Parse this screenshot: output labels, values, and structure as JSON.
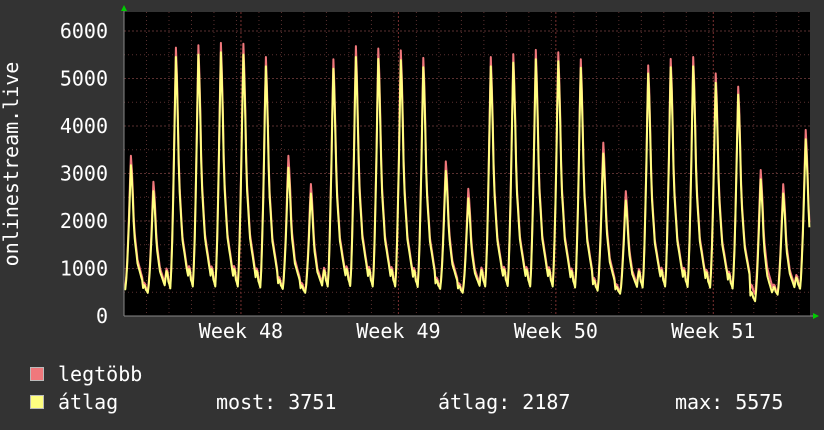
{
  "colors": {
    "background": "#333333",
    "plot_background": "#000000",
    "grid": "#5a3030",
    "axis": "#888888",
    "max_series": "#f0787c",
    "avg_series": "#ffff80",
    "arrow": "#00cc00"
  },
  "legend": {
    "max_label": "legtöbb",
    "avg_label": "átlag"
  },
  "stats": {
    "now": "most: 3751",
    "avg": "átlag: 2187",
    "max": "max: 5575"
  },
  "chart_data": {
    "type": "area",
    "ylabel": "onlinestream.live",
    "xlabel": "",
    "title": "",
    "ylim": [
      0,
      6400
    ],
    "yticks": [
      0,
      1000,
      2000,
      3000,
      4000,
      5000,
      6000
    ],
    "xticks": [
      {
        "label": "Week 48",
        "day": 5.2
      },
      {
        "label": "Week 49",
        "day": 12.2
      },
      {
        "label": "Week 50",
        "day": 19.2
      },
      {
        "label": "Week 51",
        "day": 26.2
      }
    ],
    "x_days_total": 30.5,
    "grid": true,
    "series": [
      {
        "name": "legtöbb",
        "color": "#f0787c",
        "daily_peaks": [
          3400,
          2850,
          5700,
          5750,
          5800,
          5780,
          5500,
          3400,
          2800,
          5450,
          5730,
          5680,
          5640,
          5480,
          3280,
          2700,
          5500,
          5560,
          5650,
          5600,
          5450,
          3680,
          2650,
          5320,
          5460,
          5500,
          5150,
          4870,
          3100,
          2800,
          3950
        ],
        "daily_mins": [
          600,
          520,
          600,
          650,
          640,
          650,
          620,
          600,
          520,
          640,
          650,
          640,
          640,
          630,
          600,
          520,
          640,
          650,
          640,
          640,
          620,
          560,
          500,
          620,
          640,
          630,
          620,
          600,
          450,
          480,
          600
        ]
      },
      {
        "name": "átlag",
        "color": "#ffff80",
        "daily_peaks": [
          3200,
          2650,
          5500,
          5550,
          5600,
          5550,
          5300,
          3150,
          2600,
          5250,
          5500,
          5460,
          5430,
          5280,
          3080,
          2500,
          5300,
          5380,
          5450,
          5410,
          5270,
          3450,
          2450,
          5150,
          5280,
          5300,
          4950,
          4700,
          2900,
          2600,
          3751
        ],
        "daily_mins": [
          550,
          480,
          560,
          600,
          600,
          600,
          580,
          560,
          480,
          600,
          610,
          600,
          600,
          590,
          560,
          480,
          600,
          610,
          600,
          600,
          580,
          520,
          460,
          580,
          600,
          590,
          580,
          560,
          300,
          440,
          560
        ]
      }
    ]
  }
}
